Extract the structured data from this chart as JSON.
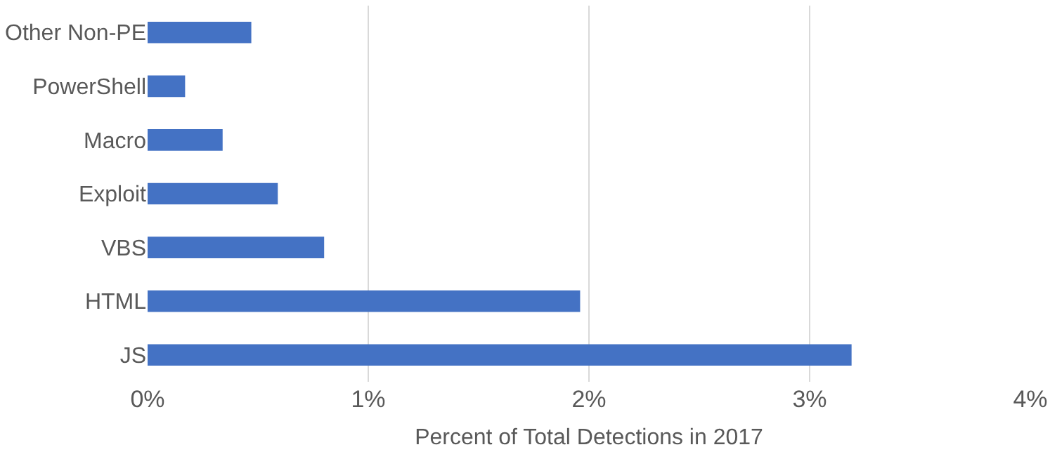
{
  "chart_data": {
    "type": "bar",
    "orientation": "horizontal",
    "xlabel": "Percent of Total Detections in 2017",
    "categories": [
      "Other Non-PE",
      "PowerShell",
      "Macro",
      "Exploit",
      "VBS",
      "HTML",
      "JS"
    ],
    "values": [
      0.47,
      0.17,
      0.34,
      0.59,
      0.8,
      1.96,
      3.19
    ],
    "color": "#4472c4",
    "xlim": [
      0,
      4
    ],
    "xticks": [
      {
        "value": 0,
        "label": "0%"
      },
      {
        "value": 1,
        "label": "1%"
      },
      {
        "value": 2,
        "label": "2%"
      },
      {
        "value": 3,
        "label": "3%"
      },
      {
        "value": 4,
        "label": "4%"
      }
    ],
    "grid": "x"
  }
}
